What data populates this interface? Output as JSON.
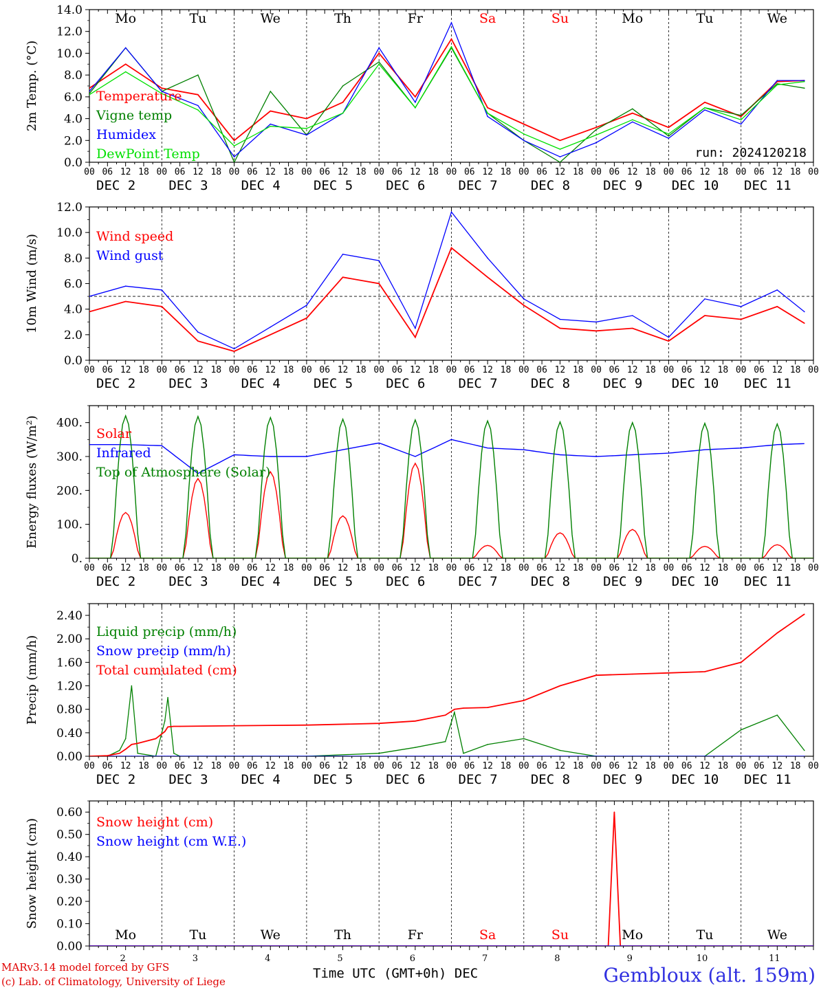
{
  "days_top": [
    {
      "label": "Mo",
      "weekend": false
    },
    {
      "label": "Tu",
      "weekend": false
    },
    {
      "label": "We",
      "weekend": false
    },
    {
      "label": "Th",
      "weekend": false
    },
    {
      "label": "Fr",
      "weekend": false
    },
    {
      "label": "Sa",
      "weekend": true
    },
    {
      "label": "Su",
      "weekend": true
    },
    {
      "label": "Mo",
      "weekend": false
    },
    {
      "label": "Tu",
      "weekend": false
    },
    {
      "label": "We",
      "weekend": false
    }
  ],
  "date_labels": [
    "DEC  2",
    "DEC  3",
    "DEC  4",
    "DEC  5",
    "DEC  6",
    "DEC  7",
    "DEC  8",
    "DEC  9",
    "DEC 10",
    "DEC 11"
  ],
  "hour_ticks": [
    "00",
    "06",
    "12",
    "18"
  ],
  "hour_end": "00",
  "bottom_day_numbers": [
    "2",
    "3",
    "4",
    "5",
    "6",
    "7",
    "8",
    "9",
    "10",
    "11"
  ],
  "footer": {
    "model": "MARv3.14 model forced by GFS",
    "lab": "(c) Lab. of Climatology, University of Liege",
    "xaxis_title": "Time UTC (GMT+0h) DEC",
    "station": "Gembloux (alt. 159m)"
  },
  "colors": {
    "red": "#ff0000",
    "green": "#008000",
    "blue": "#0000ff",
    "lightgreen": "#00e000",
    "weekend": "#ff0000"
  },
  "chart_data": [
    {
      "type": "line",
      "ylabel": "2m Temp. (°C)",
      "ylim": [
        0,
        14
      ],
      "yticks": [
        "0.0",
        "2.0",
        "4.0",
        "6.0",
        "8.0",
        "10.0",
        "12.0",
        "14.0"
      ],
      "annotation": "run: 2024120218",
      "reference_line": 0,
      "x_hours": [
        0,
        12,
        24,
        36,
        48,
        60,
        72,
        84,
        96,
        108,
        120,
        132,
        144,
        156,
        168,
        180,
        192,
        204,
        216,
        228,
        237
      ],
      "series": [
        {
          "name": "Temperature",
          "color": "red",
          "values": [
            6.8,
            9.0,
            6.8,
            6.2,
            2.0,
            4.7,
            4.0,
            5.5,
            10.0,
            6.0,
            11.3,
            5.0,
            3.5,
            2.0,
            3.2,
            4.5,
            3.2,
            5.5,
            4.2,
            7.4,
            7.5
          ]
        },
        {
          "name": "Vigne temp",
          "color": "green",
          "values": [
            6.3,
            10.5,
            6.5,
            8.0,
            0.0,
            6.5,
            2.5,
            7.0,
            9.2,
            5.0,
            10.5,
            4.5,
            2.0,
            0.0,
            3.0,
            4.9,
            2.4,
            5.0,
            4.3,
            7.2,
            6.8
          ]
        },
        {
          "name": "Humidex",
          "color": "blue",
          "values": [
            6.5,
            10.5,
            6.5,
            5.2,
            0.5,
            3.5,
            2.5,
            4.5,
            10.5,
            5.5,
            12.8,
            4.2,
            2.0,
            0.5,
            1.8,
            3.7,
            2.2,
            4.8,
            3.5,
            7.5,
            7.5
          ]
        },
        {
          "name": "DewPoint Temp",
          "color": "lightgreen",
          "values": [
            6.2,
            8.3,
            6.3,
            4.8,
            1.5,
            3.3,
            3.1,
            4.5,
            9.0,
            5.0,
            10.6,
            4.5,
            2.6,
            1.2,
            2.5,
            3.9,
            2.6,
            5.0,
            3.9,
            7.1,
            7.4
          ]
        }
      ]
    },
    {
      "type": "line",
      "ylabel": "10m Wind (m/s)",
      "ylim": [
        0,
        12
      ],
      "yticks": [
        "0.0",
        "2.0",
        "4.0",
        "6.0",
        "8.0",
        "10.0",
        "12.0"
      ],
      "reference_line": 5,
      "x_hours": [
        0,
        12,
        24,
        36,
        48,
        60,
        72,
        84,
        96,
        108,
        120,
        132,
        144,
        156,
        168,
        180,
        192,
        204,
        216,
        228,
        237
      ],
      "series": [
        {
          "name": "Wind speed",
          "color": "red",
          "values": [
            3.8,
            4.6,
            4.2,
            1.5,
            0.7,
            2.0,
            3.3,
            6.5,
            6.0,
            1.8,
            8.8,
            6.5,
            4.3,
            2.5,
            2.3,
            2.5,
            1.5,
            3.5,
            3.2,
            4.2,
            2.9
          ]
        },
        {
          "name": "Wind gust",
          "color": "blue",
          "values": [
            5.0,
            5.8,
            5.5,
            2.2,
            0.9,
            2.6,
            4.3,
            8.3,
            7.8,
            2.5,
            11.6,
            8.0,
            4.8,
            3.2,
            3.0,
            3.5,
            1.8,
            4.8,
            4.2,
            5.5,
            3.8
          ]
        }
      ]
    },
    {
      "type": "line",
      "ylabel": "Energy fluxes (W/m²)",
      "ylim": [
        0,
        450
      ],
      "yticks": [
        "0.",
        "100.",
        "200.",
        "300.",
        "400."
      ],
      "days": 10,
      "diurnal": {
        "sunrise_hour": 7.5,
        "sunset_hour": 16.5,
        "toa_peak_per_day": [
          420,
          418,
          415,
          410,
          408,
          405,
          402,
          400,
          398,
          396
        ],
        "solar_peak_per_day": [
          135,
          235,
          255,
          125,
          280,
          38,
          75,
          85,
          35,
          40
        ]
      },
      "series": [
        {
          "name": "Solar",
          "color": "red"
        },
        {
          "name": "Infrared",
          "color": "blue",
          "x_hours": [
            0,
            12,
            24,
            36,
            48,
            60,
            72,
            84,
            96,
            108,
            120,
            132,
            144,
            156,
            168,
            180,
            192,
            204,
            216,
            228,
            237
          ],
          "values": [
            335,
            335,
            332,
            250,
            305,
            300,
            300,
            320,
            340,
            300,
            350,
            325,
            320,
            305,
            300,
            305,
            310,
            320,
            325,
            335,
            338
          ]
        },
        {
          "name": "Top of Atmosphere (Solar)",
          "color": "green"
        }
      ]
    },
    {
      "type": "line",
      "ylabel": "Precip (mm/h)",
      "ylim": [
        0,
        2.6
      ],
      "yticks": [
        "0.00",
        "0.40",
        "0.80",
        "1.20",
        "1.60",
        "2.00",
        "2.40"
      ],
      "x_hours": [
        0,
        6,
        10,
        12,
        14,
        16,
        22,
        25,
        26,
        28,
        30,
        48,
        72,
        96,
        108,
        118,
        121,
        124,
        132,
        144,
        156,
        168,
        180,
        192,
        204,
        216,
        228,
        237
      ],
      "series": [
        {
          "name": "Liquid precip (mm/h)",
          "color": "green",
          "values": [
            0.0,
            0.0,
            0.1,
            0.3,
            1.2,
            0.05,
            0.0,
            0.6,
            1.0,
            0.05,
            0.0,
            0.0,
            0.0,
            0.05,
            0.15,
            0.25,
            0.75,
            0.05,
            0.2,
            0.3,
            0.1,
            0.0,
            0.0,
            0.0,
            0.0,
            0.45,
            0.7,
            0.1
          ]
        },
        {
          "name": "Snow precip (mm/h)",
          "color": "blue",
          "values": [
            0,
            0,
            0,
            0,
            0,
            0,
            0,
            0,
            0,
            0,
            0,
            0,
            0,
            0,
            0,
            0,
            0,
            0,
            0,
            0,
            0,
            0,
            0,
            0,
            0,
            0,
            0,
            0
          ]
        },
        {
          "name": "Total cumulated (cm)",
          "color": "red",
          "values": [
            0.0,
            0.01,
            0.05,
            0.12,
            0.2,
            0.22,
            0.3,
            0.42,
            0.5,
            0.51,
            0.51,
            0.52,
            0.53,
            0.56,
            0.6,
            0.7,
            0.8,
            0.82,
            0.83,
            0.95,
            1.2,
            1.38,
            1.4,
            1.42,
            1.44,
            1.6,
            2.1,
            2.42
          ]
        }
      ]
    },
    {
      "type": "line",
      "ylabel": "Snow height (cm)",
      "ylim": [
        0,
        0.65
      ],
      "yticks": [
        "0.00",
        "0.10",
        "0.20",
        "0.30",
        "0.40",
        "0.50",
        "0.60"
      ],
      "x_hours": [
        0,
        172,
        174,
        176,
        240
      ],
      "series": [
        {
          "name": "Snow height (cm)",
          "color": "red",
          "values": [
            0,
            0,
            0.6,
            0,
            0
          ]
        },
        {
          "name": "Snow height (cm W.E.)",
          "color": "blue",
          "values": [
            0,
            0,
            0,
            0,
            0
          ]
        }
      ]
    }
  ]
}
